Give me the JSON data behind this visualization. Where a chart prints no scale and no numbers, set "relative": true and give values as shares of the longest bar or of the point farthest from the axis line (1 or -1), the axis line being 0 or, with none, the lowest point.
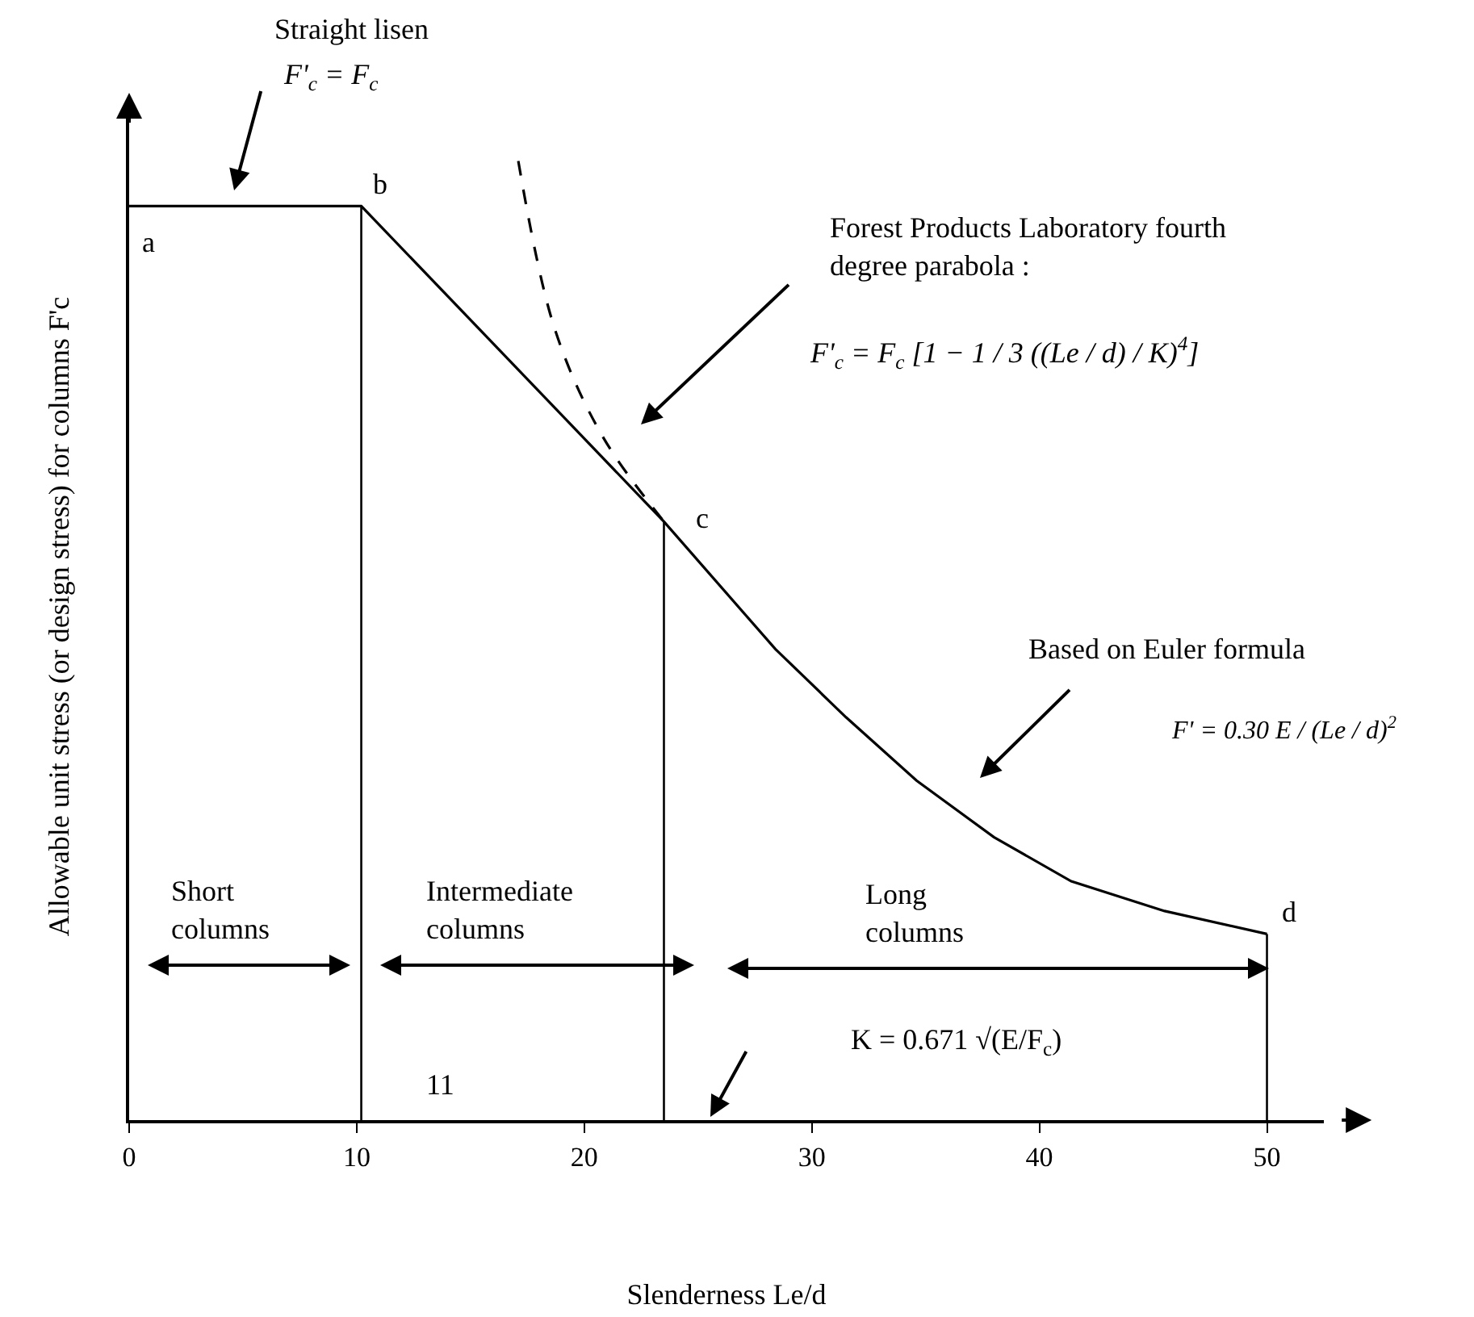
{
  "chart_data": {
    "type": "line",
    "relative": true,
    "xlabel": "Slenderness Le/d",
    "ylabel": "Allowable unit stress (or design stress) for columns F'c",
    "xlim": [
      0,
      52.5
    ],
    "xticks": [
      0,
      10,
      20,
      30,
      40,
      50
    ],
    "series": [
      {
        "color": "#000000",
        "line_style": "solid",
        "x": [
          0,
          10.2,
          23.5,
          28.4,
          31.5,
          34.6,
          38,
          41.4,
          45.5,
          50
        ],
        "values": [
          0.953,
          0.953,
          0.624,
          0.491,
          0.42,
          0.354,
          0.295,
          0.249,
          0.218,
          0.194
        ]
      },
      {
        "color": "#000000",
        "line_style": "dashed",
        "x": [
          17.1,
          18.7,
          20.8,
          23.5
        ],
        "values": [
          1.0,
          0.825,
          0.713,
          0.624
        ]
      }
    ],
    "ref_lines": [
      {
        "axis": "x",
        "value": 10.2,
        "color": "#000000"
      },
      {
        "axis": "x",
        "value": 23.5,
        "color": "#000000"
      },
      {
        "axis": "x",
        "value": 50,
        "color": "#000000"
      }
    ],
    "annotations": [
      "Straight lisen",
      "F'$_{c}$ = F$_{c}$",
      "Forest Products Laboratory fourth\ndegree parabola :",
      "F'$_{c}$ = F$_{c}$ [1 − 1 / 3 ((Le / d) / K)$^{4}$]",
      "Based on Euler formula",
      "F' = 0.30 E / (Le / d)$^{2}$",
      "Short\ncolumns",
      "Intermediate\ncolumns",
      "Long\ncolumns",
      "K = 0.671 √(E/F$_{c}$)",
      "11",
      {
        "text": "a",
        "x": 0,
        "y": 0.953
      },
      {
        "text": "b",
        "x": 10.2,
        "y": 0.953
      },
      {
        "text": "c",
        "x": 23.5,
        "y": 0.624
      },
      {
        "text": "d",
        "x": 50,
        "y": 0.194
      }
    ],
    "grid": false,
    "marker": "none"
  }
}
